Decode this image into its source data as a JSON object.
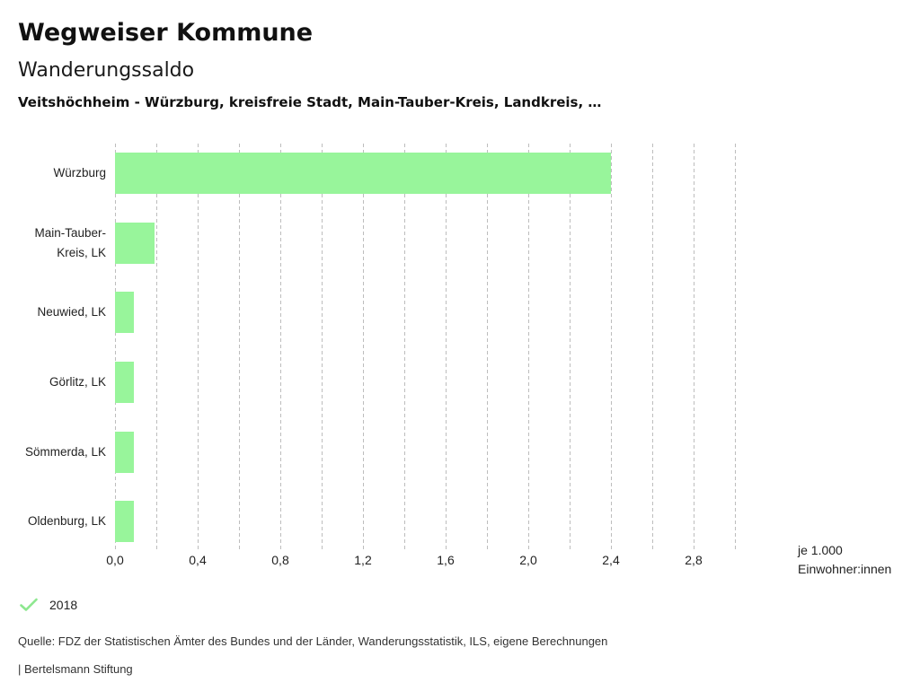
{
  "header": {
    "app_title": "Wegweiser Kommune",
    "chart_title": "Wanderungssaldo",
    "chart_subtitle": "Veitshöchheim - Würzburg, kreisfreie Stadt, Main-Tauber-Kreis, Landkreis, …"
  },
  "chart_data": {
    "type": "bar",
    "orientation": "horizontal",
    "title": "Wanderungssaldo",
    "categories": [
      "Würzburg",
      "Main-Tauber-Kreis, LK",
      "Neuwied, LK",
      "Görlitz, LK",
      "Sömmerda, LK",
      "Oldenburg, LK"
    ],
    "series": [
      {
        "name": "2018",
        "values": [
          2.4,
          0.19,
          0.09,
          0.09,
          0.09,
          0.09
        ]
      }
    ],
    "x_tick_labels": [
      "0,0",
      "0,4",
      "0,8",
      "1,2",
      "1,6",
      "2,0",
      "2,4",
      "2,8"
    ],
    "x_tick_values": [
      0,
      0.4,
      0.8,
      1.2,
      1.6,
      2.0,
      2.4,
      2.8
    ],
    "xlim": [
      0,
      3.0
    ],
    "grid_step": 0.2,
    "grid": true,
    "legend_position": "bottom-left",
    "xlabel_lines": [
      "je 1.000",
      "Einwohner:innen"
    ],
    "bar_color": "#98f59b"
  },
  "legend": {
    "items": [
      {
        "icon": "check-icon",
        "label": "2018",
        "icon_color": "#8de78f"
      }
    ]
  },
  "footer": {
    "source": "Quelle: FDZ der Statistischen Ämter des Bundes und der Länder, Wanderungsstatistik, ILS, eigene Berechnungen",
    "attribution": "| Bertelsmann Stiftung"
  },
  "colors": {
    "bar": "#98f59b",
    "check": "#8de78f",
    "grid": "#bdbdbd",
    "text": "#222222"
  }
}
